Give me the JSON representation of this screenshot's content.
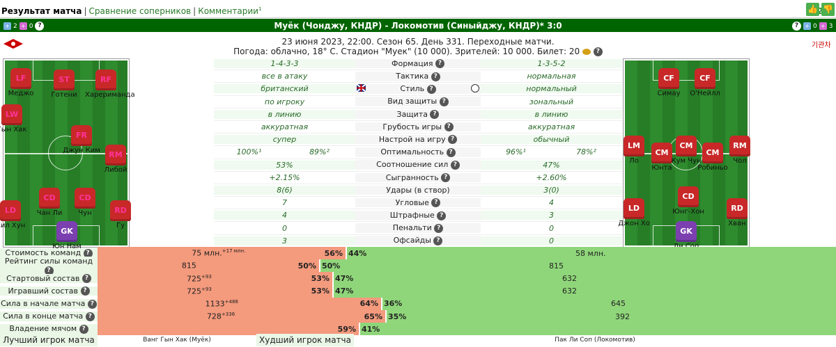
{
  "tabs": {
    "current": "Результат матча",
    "compare": "Сравнение соперников",
    "comments": "Комментарии",
    "comments_sup": "1"
  },
  "rating": "+2",
  "header": {
    "title": "Муёк (Чонджу, КНДР) - Локомотив (Синыйджу, КНДР)*  3:0",
    "left_badges": {
      "a": "2",
      "b": "0"
    },
    "right_badges": {
      "a": "0",
      "b": "3"
    },
    "date_line": "23 июня 2023, 22:00. Сезон 65. День 331. Переходные матчи.",
    "weather_line": "Погода:  облачно, 18° С. Стадион \"Муек\" (10 000). Зрителей: 10 000. Билет: 20",
    "right_logo_text": "기관차"
  },
  "home_players": [
    {
      "pos": "LF",
      "name": "Меджо"
    },
    {
      "pos": "ST",
      "name": "Готени"
    },
    {
      "pos": "RF",
      "name": "Харериманда"
    },
    {
      "pos": "LW",
      "name": "Гын Хак"
    },
    {
      "pos": "FR",
      "name": "Джун Ким"
    },
    {
      "pos": "RM",
      "name": "Либой"
    },
    {
      "pos": "LD",
      "name": "Кил Хун"
    },
    {
      "pos": "CD",
      "name": "Чан Ли"
    },
    {
      "pos": "CD",
      "name": "Чун"
    },
    {
      "pos": "RD",
      "name": "Гу"
    },
    {
      "pos": "GK",
      "name": "Юн Нам"
    }
  ],
  "away_players": [
    {
      "pos": "CF",
      "name": "Симау"
    },
    {
      "pos": "CF",
      "name": "О'Нейлл"
    },
    {
      "pos": "LM",
      "name": "Ло"
    },
    {
      "pos": "CM",
      "name": "Юнта"
    },
    {
      "pos": "CM",
      "name": "Кум Чун"
    },
    {
      "pos": "CM",
      "name": "Робиньо"
    },
    {
      "pos": "RM",
      "name": "Чол"
    },
    {
      "pos": "LD",
      "name": "Джон Хо"
    },
    {
      "pos": "CD",
      "name": "Юнг-Хон"
    },
    {
      "pos": "RD",
      "name": "Хван"
    },
    {
      "pos": "GK",
      "name": "Ли Соп"
    }
  ],
  "stats": [
    {
      "home": "1-4-3-3",
      "label": "Формация",
      "away": "1-3-5-2",
      "q": true
    },
    {
      "home": "все в атаку",
      "label": "Тактика",
      "away": "нормальная",
      "q": true
    },
    {
      "home": "британский",
      "label": "Стиль",
      "away": "нормальный",
      "q": true
    },
    {
      "home": "по игроку",
      "label": "Вид защиты",
      "away": "зональный",
      "q": true
    },
    {
      "home": "в линию",
      "label": "Защита",
      "away": "в линию",
      "q": true
    },
    {
      "home": "аккуратная",
      "label": "Грубость игры",
      "away": "аккуратная",
      "q": true
    },
    {
      "home": "супер",
      "label": "Настрой на игру",
      "away": "обычный",
      "q": true
    },
    {
      "home": "100%¹",
      "home2": "89%²",
      "label": "Оптимальность",
      "away": "96%¹",
      "away2": "78%²",
      "q": true
    },
    {
      "home": "53%",
      "label": "Соотношение сил",
      "away": "47%",
      "q": true
    },
    {
      "home": "+2.15%",
      "label": "Сыгранность",
      "away": "+2.60%",
      "q": true
    },
    {
      "home": "8(6)",
      "label": "Удары (в створ)",
      "away": "3(0)",
      "q": false
    },
    {
      "home": "7",
      "label": "Угловые",
      "away": "4",
      "q": true
    },
    {
      "home": "4",
      "label": "Штрафные",
      "away": "3",
      "q": true
    },
    {
      "home": "0",
      "label": "Пенальти",
      "away": "0",
      "q": true
    },
    {
      "home": "3",
      "label": "Офсайды",
      "away": "0",
      "q": true
    }
  ],
  "comparison": [
    {
      "label": "Стоимость команд",
      "left": "75 млн.",
      "left_sup": "+17 млн.",
      "lp": "56%",
      "rp": "44%",
      "right": "58 млн.",
      "frac": 0.56
    },
    {
      "label": "Рейтинг силы команд",
      "left": "815",
      "left_sup": "",
      "lp": "50%",
      "rp": "50%",
      "right": "815",
      "frac": 0.5
    },
    {
      "label": "Стартовый состав",
      "left": "725",
      "left_sup": "+93",
      "lp": "53%",
      "rp": "47%",
      "right": "632",
      "frac": 0.53
    },
    {
      "label": "Игравший состав",
      "left": "725",
      "left_sup": "+93",
      "lp": "53%",
      "rp": "47%",
      "right": "632",
      "frac": 0.53
    },
    {
      "label": "Сила в начале матча",
      "left": "1133",
      "left_sup": "+488",
      "lp": "64%",
      "rp": "36%",
      "right": "645",
      "frac": 0.64
    },
    {
      "label": "Сила в конце матча",
      "left": "728",
      "left_sup": "+336",
      "lp": "65%",
      "rp": "35%",
      "right": "392",
      "frac": 0.65
    },
    {
      "label": "Владение мячом",
      "left": "",
      "left_sup": "",
      "lp": "59%",
      "rp": "41%",
      "right": "",
      "frac": 0.59
    }
  ],
  "footer": {
    "best_label": "Лучший игрок матча",
    "best": "Ванг Гын Хак (Муёк)",
    "worst_label": "Худший игрок матча",
    "worst": "Пак Ли Соп (Локомотив)"
  }
}
